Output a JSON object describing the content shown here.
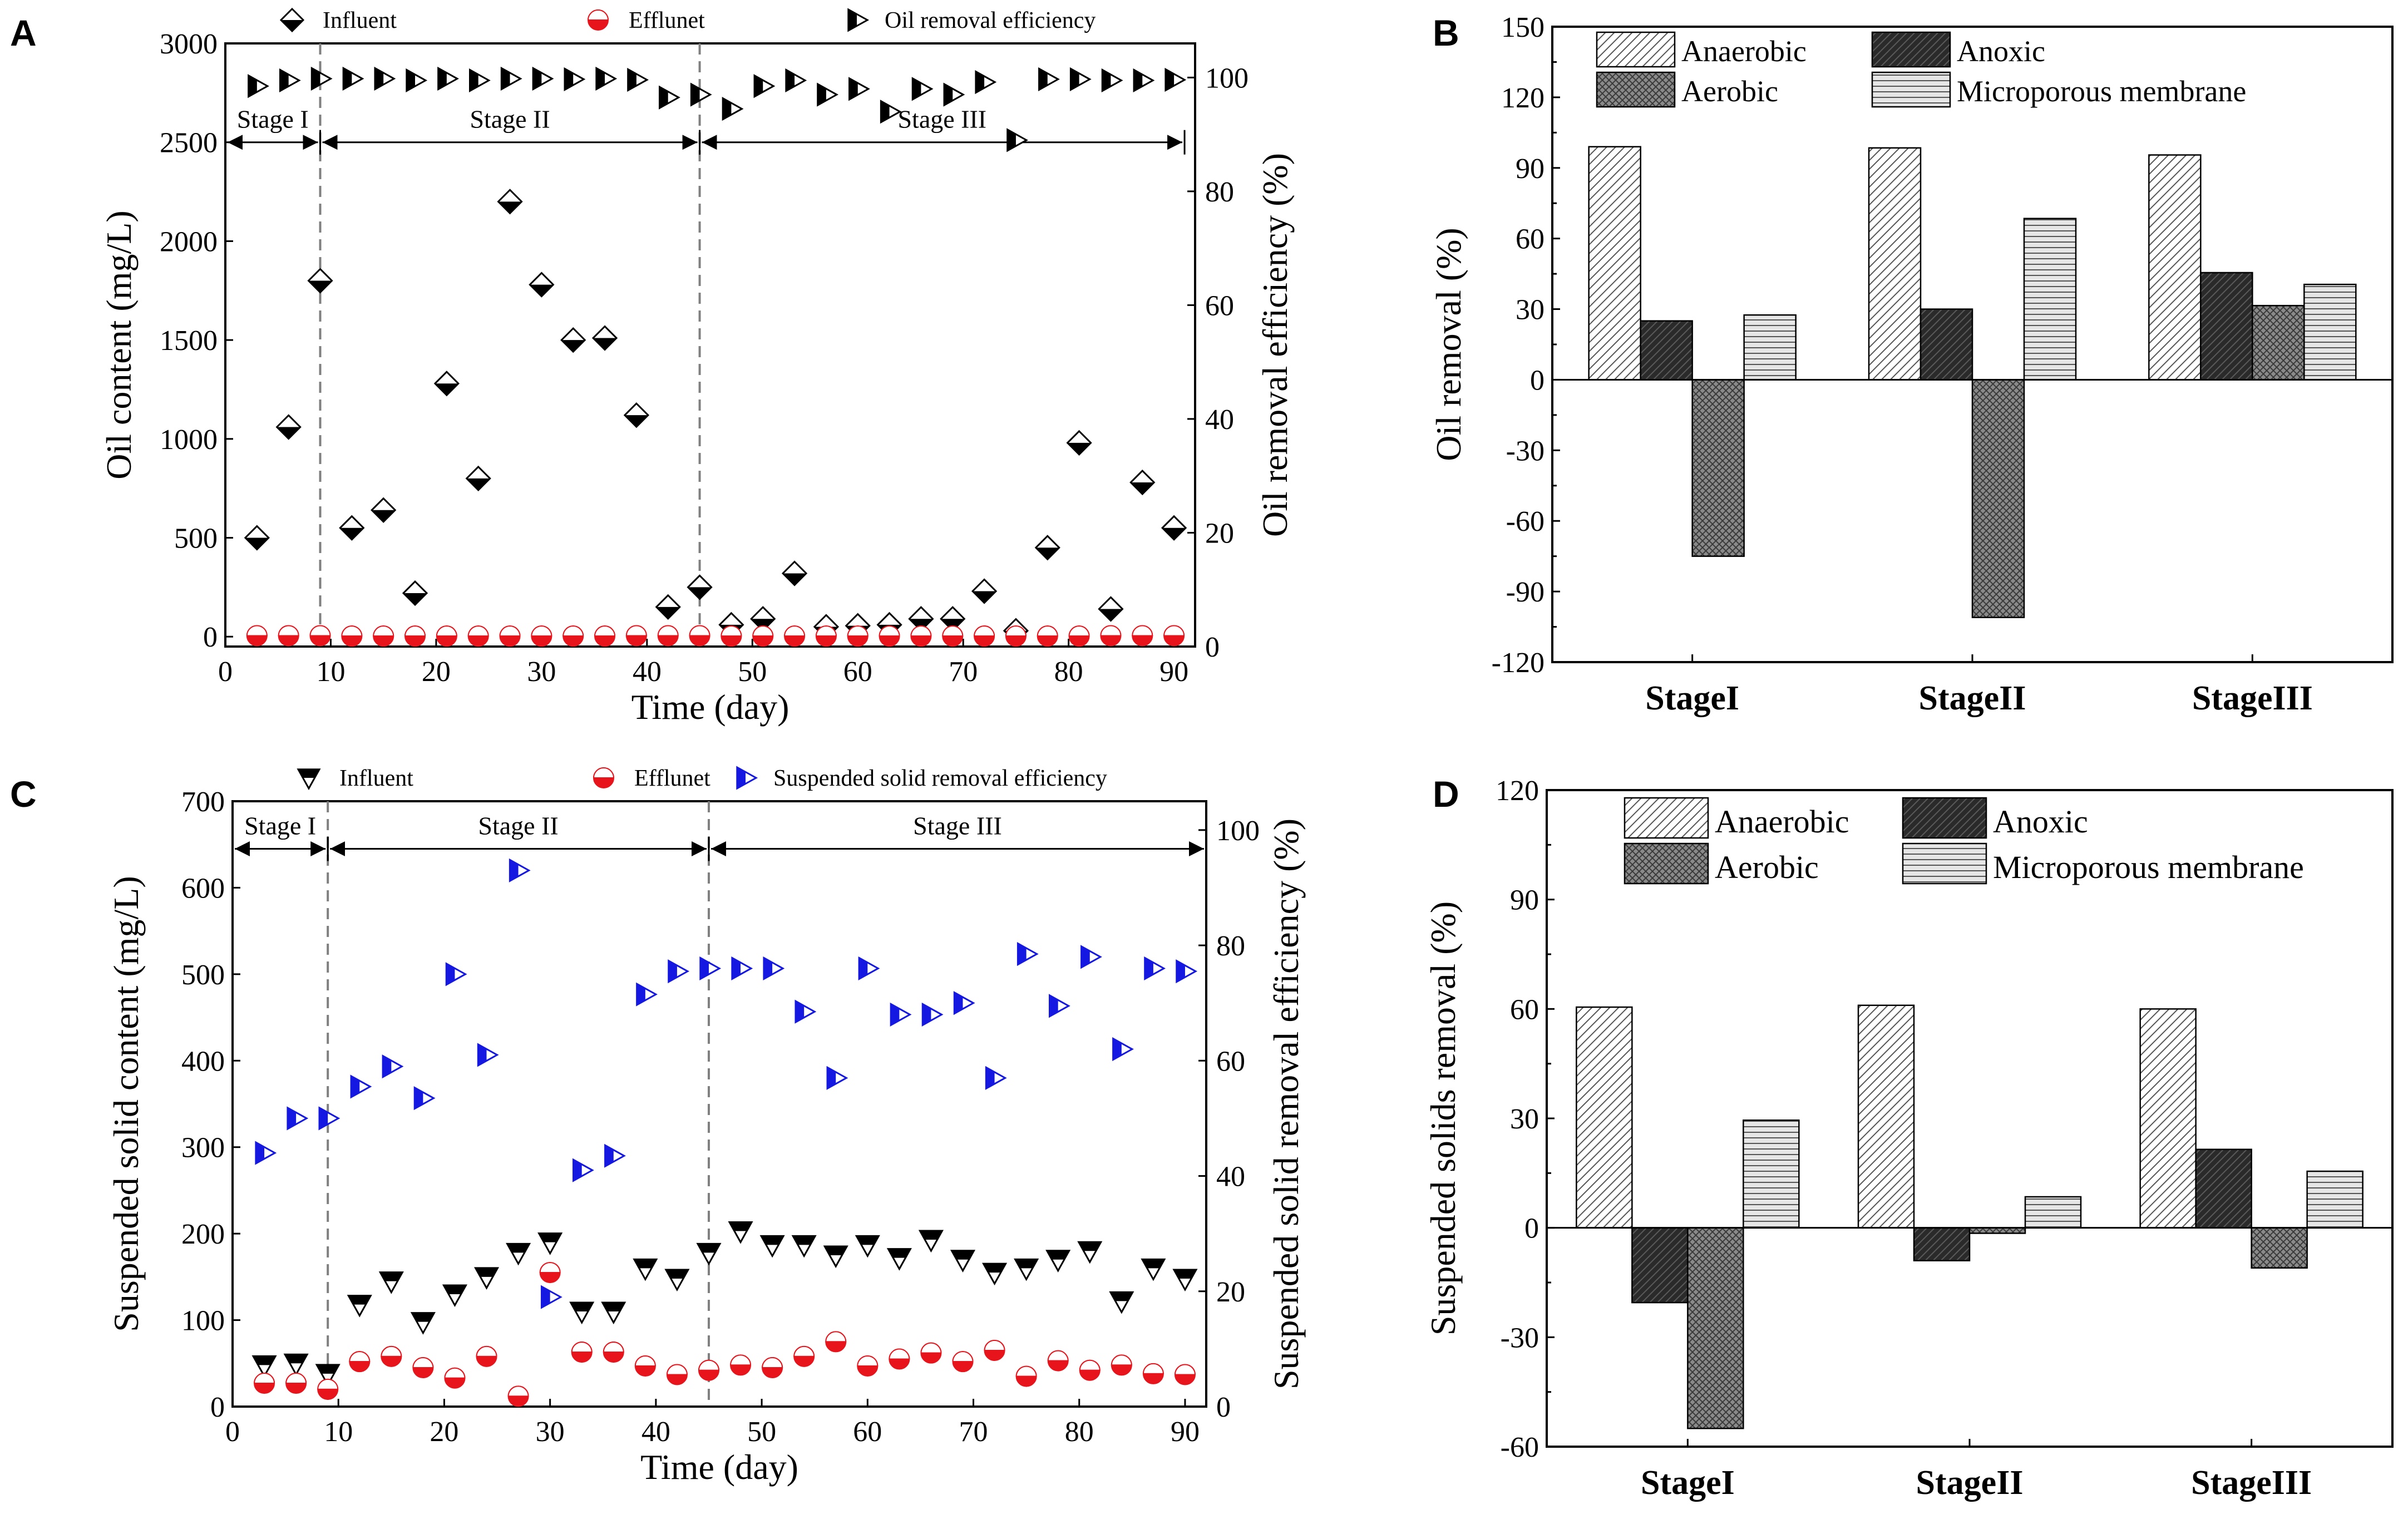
{
  "colors": {
    "black": "#000000",
    "red": "#e8141c",
    "blue": "#1418e0",
    "grid": "#808080"
  },
  "chart_data": [
    {
      "panel": "A",
      "type": "scatter",
      "xlabel": "Time (day)",
      "ylabel": "Oil content (mg/L)",
      "y2label": "Oil removal efficiency (%)",
      "xlim": [
        0,
        92
      ],
      "ylim": [
        -50,
        3000
      ],
      "y2lim": [
        0,
        106
      ],
      "xticks": [
        0,
        10,
        20,
        30,
        40,
        50,
        60,
        70,
        80,
        90
      ],
      "yticks": [
        0,
        500,
        1000,
        1500,
        2000,
        2500,
        3000
      ],
      "y2ticks": [
        0,
        20,
        40,
        60,
        80,
        100
      ],
      "legend": [
        "Influent",
        "Efflunet",
        "Oil removal efficiency"
      ],
      "stages": [
        {
          "label": "Stage I",
          "from": 0,
          "to": 9
        },
        {
          "label": "Stage II",
          "from": 9,
          "to": 45
        },
        {
          "label": "Stage III",
          "from": 45,
          "to": 91
        }
      ],
      "stage_lines": [
        9,
        45
      ],
      "stage_arrow_y": 2500,
      "influent": {
        "name": "Influent",
        "x": [
          3,
          6,
          9,
          12,
          15,
          18,
          21,
          24,
          27,
          30,
          33,
          36,
          39,
          42,
          45,
          48,
          51,
          54,
          57,
          60,
          63,
          66,
          69,
          72,
          75,
          78,
          81,
          84,
          87,
          90
        ],
        "y": [
          500,
          1060,
          1800,
          550,
          640,
          220,
          1280,
          800,
          2200,
          1780,
          1500,
          1510,
          1120,
          150,
          250,
          60,
          90,
          320,
          50,
          55,
          60,
          90,
          90,
          230,
          30,
          450,
          980,
          140,
          780,
          550
        ]
      },
      "effluent": {
        "name": "Efflunet",
        "x": [
          3,
          6,
          9,
          12,
          15,
          18,
          21,
          24,
          27,
          30,
          33,
          36,
          39,
          42,
          45,
          48,
          51,
          54,
          57,
          60,
          63,
          66,
          69,
          72,
          75,
          78,
          81,
          84,
          87,
          90
        ],
        "y": [
          5,
          5,
          5,
          3,
          3,
          3,
          3,
          3,
          3,
          3,
          3,
          3,
          5,
          5,
          5,
          3,
          3,
          3,
          3,
          3,
          3,
          3,
          3,
          3,
          3,
          3,
          3,
          5,
          5,
          5
        ]
      },
      "efficiency": {
        "name": "Oil removal efficiency",
        "x": [
          3,
          6,
          9,
          12,
          15,
          18,
          21,
          24,
          27,
          30,
          33,
          36,
          39,
          42,
          45,
          48,
          51,
          54,
          57,
          60,
          63,
          66,
          69,
          72,
          75,
          78,
          81,
          84,
          87,
          90
        ],
        "y": [
          98.5,
          99.5,
          99.8,
          99.8,
          99.8,
          99.5,
          99.8,
          99.5,
          99.8,
          99.8,
          99.7,
          99.8,
          99.6,
          96.5,
          97,
          94.5,
          98.5,
          99.5,
          97,
          98,
          94,
          98,
          97,
          99.2,
          89,
          99.7,
          99.7,
          99.5,
          99.5,
          99.6
        ]
      }
    },
    {
      "panel": "B",
      "type": "bar",
      "ylabel": "Oil  removal (%)",
      "ylim": [
        -120,
        150
      ],
      "yticks": [
        -120,
        -90,
        -60,
        -30,
        0,
        30,
        60,
        90,
        120,
        150
      ],
      "categories": [
        "StageI",
        "StageII",
        "StageIII"
      ],
      "series": [
        {
          "name": "Anaerobic",
          "values": [
            99,
            98.5,
            95.5
          ]
        },
        {
          "name": "Anoxic",
          "values": [
            25,
            30,
            45.5
          ]
        },
        {
          "name": "Aerobic",
          "values": [
            -75,
            -101,
            31.5
          ]
        },
        {
          "name": "Microporous membrane",
          "values": [
            27.5,
            68.5,
            40.5
          ]
        }
      ]
    },
    {
      "panel": "C",
      "type": "scatter",
      "xlabel": "Time (day)",
      "ylabel": "Suspended solid content (mg/L)",
      "y2label": "Suspended solid removal efficiency (%)",
      "xlim": [
        0,
        92
      ],
      "ylim": [
        0,
        700
      ],
      "y2lim": [
        0,
        105
      ],
      "xticks": [
        0,
        10,
        20,
        30,
        40,
        50,
        60,
        70,
        80,
        90
      ],
      "yticks": [
        0,
        100,
        200,
        300,
        400,
        500,
        600,
        700
      ],
      "y2ticks": [
        0,
        20,
        40,
        60,
        80,
        100
      ],
      "legend": [
        "Influent",
        "Efflunet",
        "Suspended solid removal efficiency"
      ],
      "stages": [
        {
          "label": "Stage I",
          "from": 0,
          "to": 9
        },
        {
          "label": "Stage II",
          "from": 9,
          "to": 45
        },
        {
          "label": "Stage III",
          "from": 45,
          "to": 92
        }
      ],
      "stage_lines": [
        9,
        45
      ],
      "stage_arrow_y": 645,
      "influent": {
        "name": "Influent",
        "x": [
          3,
          6,
          9,
          12,
          15,
          18,
          21,
          24,
          27,
          30,
          33,
          36,
          39,
          42,
          45,
          48,
          51,
          54,
          57,
          60,
          63,
          66,
          69,
          72,
          75,
          78,
          81,
          84,
          87,
          90
        ],
        "y": [
          48,
          50,
          38,
          118,
          145,
          98,
          130,
          150,
          178,
          190,
          110,
          110,
          160,
          148,
          178,
          203,
          187,
          187,
          175,
          187,
          172,
          193,
          170,
          155,
          160,
          170,
          180,
          122,
          160,
          148
        ]
      },
      "effluent": {
        "name": "Efflunet",
        "x": [
          3,
          6,
          9,
          12,
          15,
          18,
          21,
          24,
          27,
          30,
          33,
          36,
          39,
          42,
          45,
          48,
          51,
          54,
          57,
          60,
          63,
          66,
          69,
          72,
          75,
          78,
          81,
          84,
          87,
          90
        ],
        "y": [
          27,
          27,
          20,
          52,
          58,
          45,
          33,
          58,
          12,
          155,
          63,
          63,
          47,
          37,
          42,
          48,
          45,
          58,
          75,
          47,
          55,
          62,
          52,
          65,
          35,
          53,
          42,
          48,
          38,
          37
        ]
      },
      "efficiency": {
        "name": "Suspended solid removal efficiency",
        "x": [
          3,
          6,
          9,
          12,
          15,
          18,
          21,
          24,
          27,
          30,
          33,
          36,
          39,
          42,
          45,
          48,
          51,
          54,
          57,
          60,
          63,
          66,
          69,
          72,
          75,
          78,
          81,
          84,
          87,
          90
        ],
        "y": [
          44,
          50,
          50,
          55.5,
          59,
          53.5,
          75,
          61,
          93,
          19,
          41,
          43.5,
          71.5,
          75.5,
          76,
          76,
          76,
          68.5,
          57,
          76,
          68,
          68,
          70,
          57,
          78.5,
          69.5,
          78,
          62,
          76,
          75.5
        ]
      }
    },
    {
      "panel": "D",
      "type": "bar",
      "ylabel": "Suspended solids removal (%)",
      "ylim": [
        -60,
        120
      ],
      "yticks": [
        -60,
        -30,
        0,
        30,
        60,
        90,
        120
      ],
      "categories": [
        "StageI",
        "StageII",
        "StageIII"
      ],
      "series": [
        {
          "name": "Anaerobic",
          "values": [
            60.5,
            61,
            60
          ]
        },
        {
          "name": "Anoxic",
          "values": [
            -20.5,
            -9,
            21.5
          ]
        },
        {
          "name": "Aerobic",
          "values": [
            -55,
            -1.5,
            -11
          ]
        },
        {
          "name": "Microporous membrane",
          "values": [
            29.5,
            8.5,
            15.5
          ]
        }
      ]
    }
  ]
}
